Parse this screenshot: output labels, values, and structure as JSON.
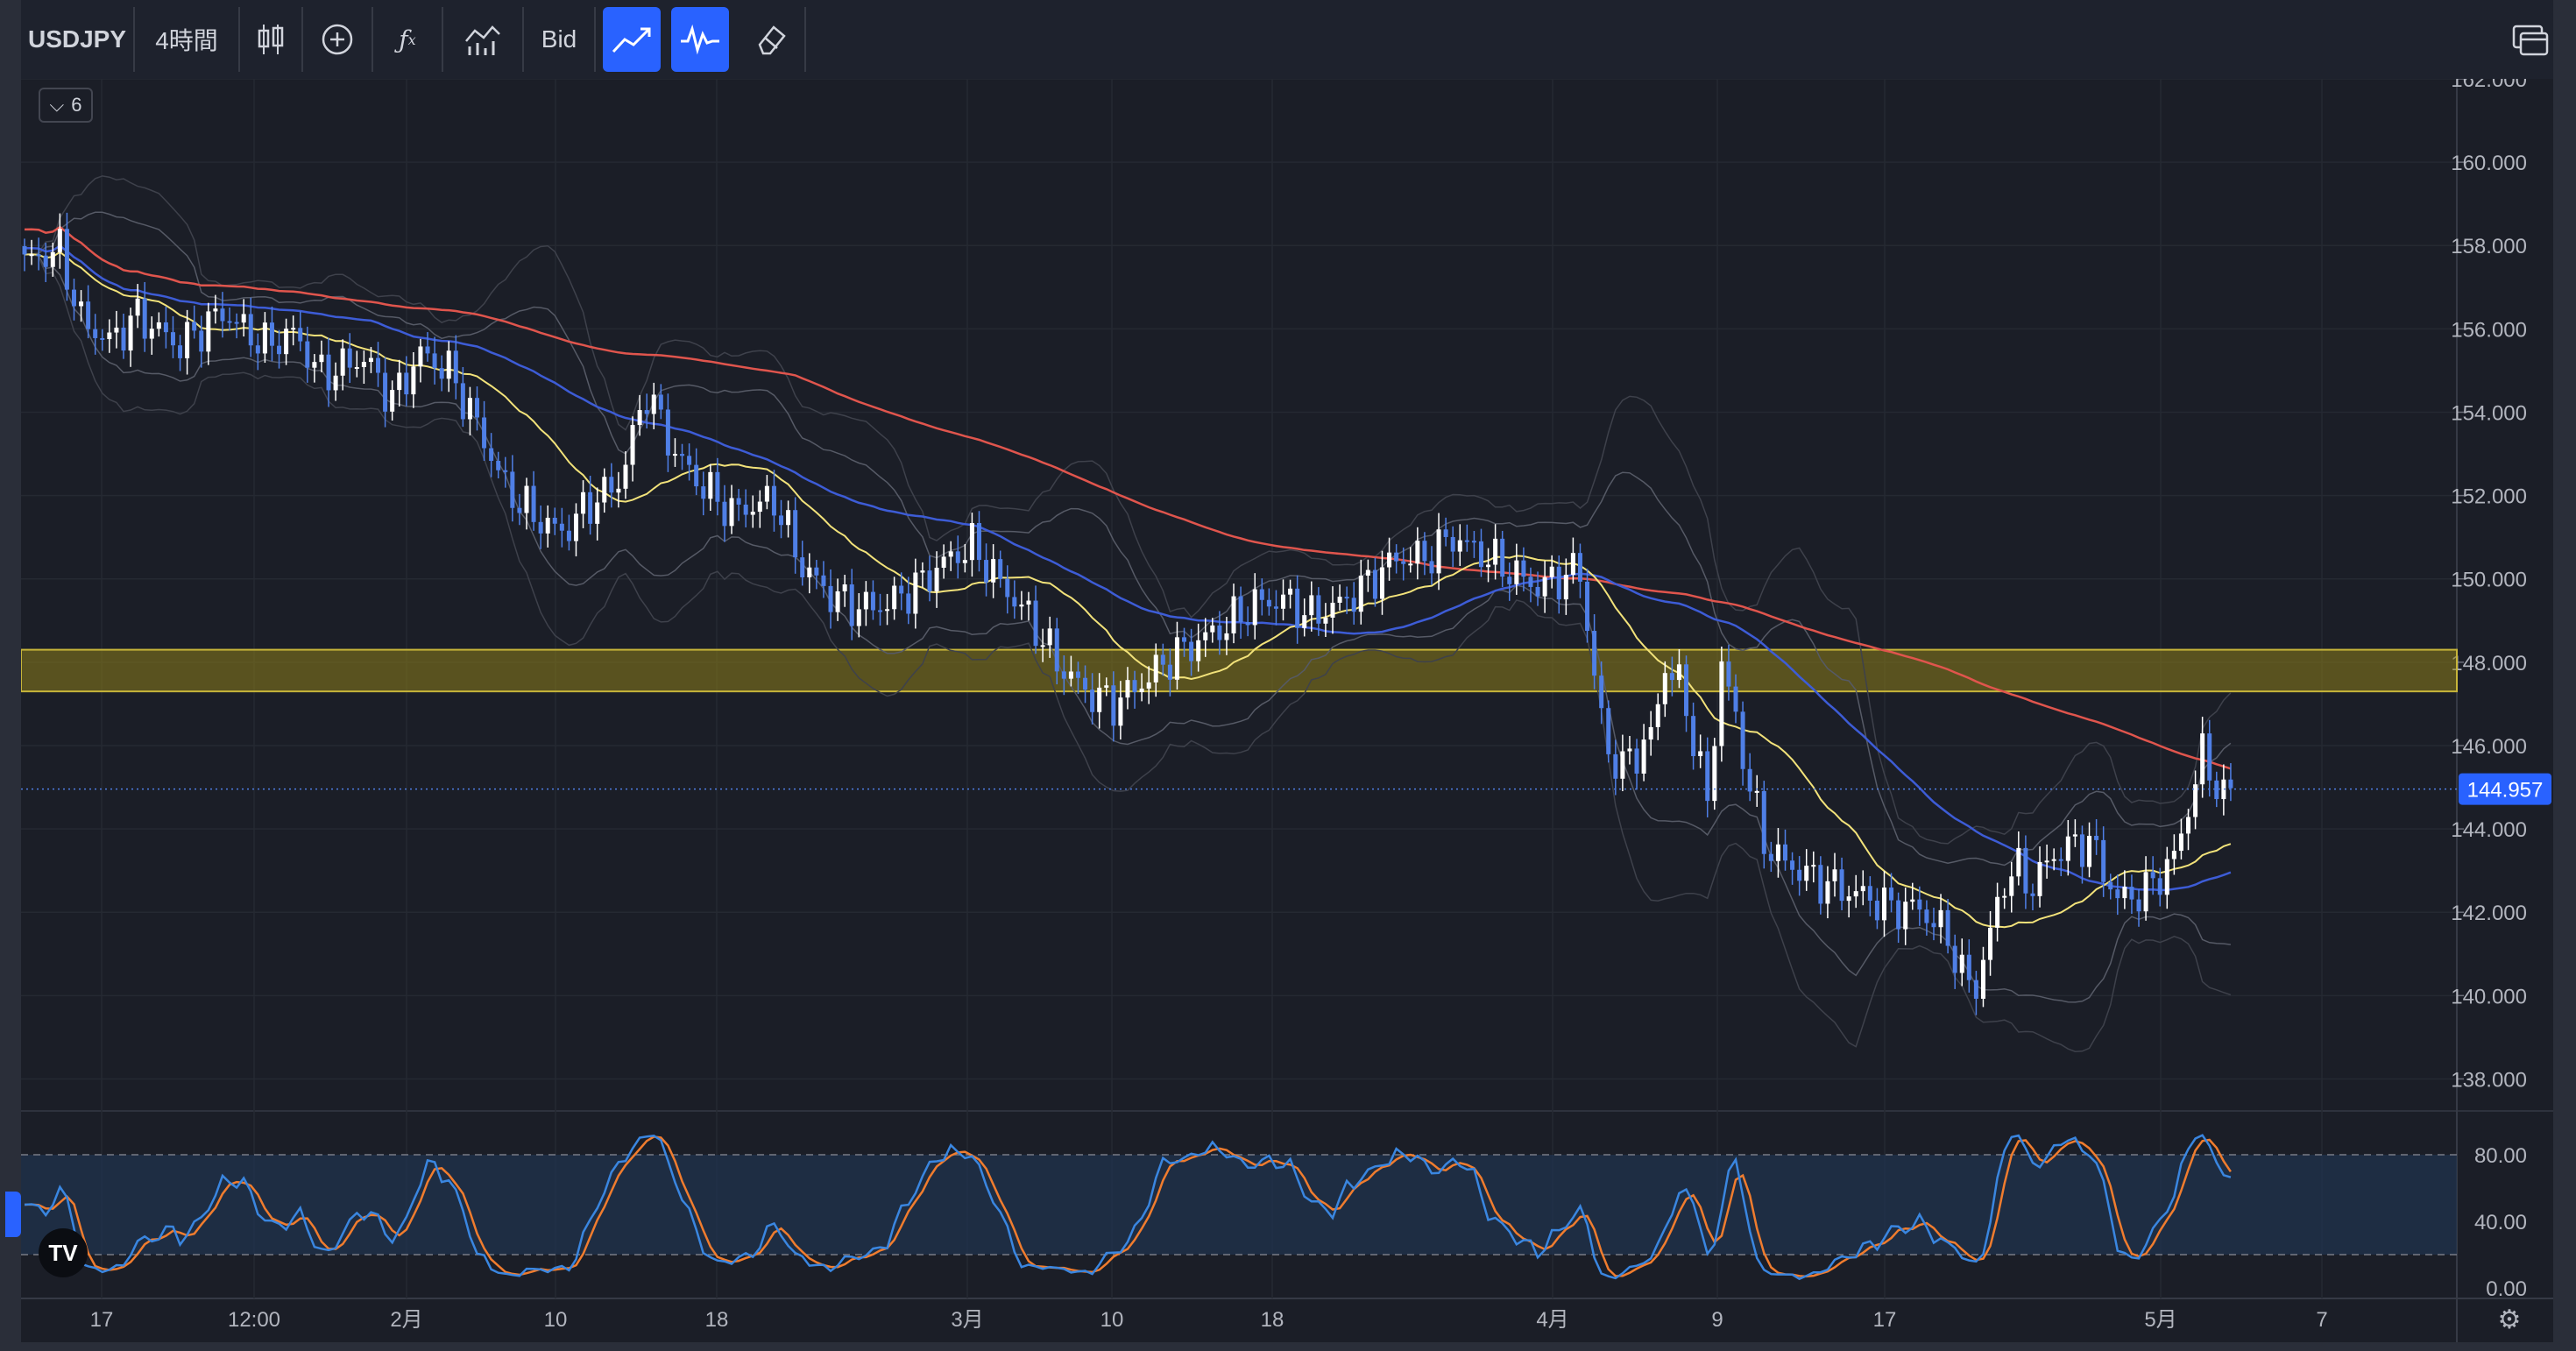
{
  "toolbar": {
    "symbol": "USDJPY",
    "interval": "4時間",
    "price_type": "Bid",
    "icons": [
      "candles-icon",
      "add-indicator-icon",
      "formula-icon",
      "indicators-icon",
      "trend-icon",
      "oscillator-icon",
      "eraser-icon",
      "layout-icon"
    ]
  },
  "legend_toggle": "6",
  "colors": {
    "background": "#1b1e27",
    "up_candle": "#ffffff",
    "down_candle": "#4f7fe6",
    "sma_short": "#f2e27a",
    "sma_mid": "#3d5cd6",
    "sma_long": "#e0554d",
    "stoch_k": "#3a86e0",
    "stoch_d": "#f07c2e",
    "zone": "#8c7d1a",
    "price_tag": "#2962ff"
  },
  "chart_data": [
    {
      "type": "candlestick",
      "symbol": "USDJPY",
      "y_ticks": [
        "162.000",
        "160.000",
        "158.000",
        "156.000",
        "154.000",
        "152.000",
        "150.000",
        "148.000",
        "146.000",
        "144.000",
        "142.000",
        "140.000",
        "138.000"
      ],
      "ylim": [
        137.4,
        162.0
      ],
      "x_ticks": [
        "17",
        "12:00",
        "2月",
        "10",
        "18",
        "3月",
        "10",
        "18",
        "4月",
        "9",
        "17",
        "5月",
        "7"
      ],
      "current_price": "144.957",
      "resistance_zone": [
        147.3,
        148.3
      ],
      "close_path": [
        [
          0,
          157.6
        ],
        [
          5,
          157.9
        ],
        [
          8,
          156.2
        ],
        [
          12,
          155.7
        ],
        [
          16,
          156.3
        ],
        [
          22,
          155.6
        ],
        [
          28,
          156.4
        ],
        [
          34,
          155.6
        ],
        [
          38,
          155.9
        ],
        [
          42,
          154.9
        ],
        [
          48,
          155.3
        ],
        [
          52,
          154.3
        ],
        [
          56,
          155.4
        ],
        [
          60,
          155.0
        ],
        [
          64,
          153.7
        ],
        [
          68,
          152.2
        ],
        [
          72,
          151.5
        ],
        [
          76,
          151.1
        ],
        [
          80,
          151.8
        ],
        [
          84,
          152.3
        ],
        [
          88,
          154.5
        ],
        [
          92,
          153.0
        ],
        [
          96,
          152.2
        ],
        [
          100,
          151.6
        ],
        [
          106,
          151.9
        ],
        [
          110,
          150.3
        ],
        [
          114,
          149.6
        ],
        [
          118,
          149.3
        ],
        [
          122,
          149.4
        ],
        [
          126,
          149.8
        ],
        [
          130,
          150.4
        ],
        [
          134,
          150.8
        ],
        [
          138,
          149.9
        ],
        [
          142,
          149.1
        ],
        [
          146,
          148.0
        ],
        [
          150,
          147.3
        ],
        [
          154,
          147.0
        ],
        [
          158,
          147.5
        ],
        [
          162,
          148.1
        ],
        [
          166,
          148.5
        ],
        [
          170,
          148.9
        ],
        [
          174,
          149.4
        ],
        [
          178,
          149.5
        ],
        [
          182,
          149.1
        ],
        [
          186,
          149.4
        ],
        [
          190,
          149.9
        ],
        [
          194,
          150.5
        ],
        [
          198,
          150.5
        ],
        [
          202,
          151.0
        ],
        [
          206,
          150.6
        ],
        [
          210,
          150.2
        ],
        [
          214,
          149.8
        ],
        [
          218,
          150.1
        ],
        [
          220,
          150.2
        ],
        [
          222,
          147.6
        ],
        [
          224,
          145.8
        ],
        [
          226,
          145.5
        ],
        [
          230,
          146.2
        ],
        [
          232,
          147.9
        ],
        [
          234,
          147.5
        ],
        [
          236,
          146.2
        ],
        [
          238,
          144.6
        ],
        [
          240,
          148.0
        ],
        [
          242,
          146.6
        ],
        [
          244,
          145.0
        ],
        [
          246,
          143.7
        ],
        [
          248,
          143.3
        ],
        [
          252,
          142.9
        ],
        [
          256,
          142.6
        ],
        [
          260,
          142.4
        ],
        [
          264,
          142.1
        ],
        [
          268,
          142.1
        ],
        [
          272,
          141.4
        ],
        [
          274,
          140.5
        ],
        [
          276,
          140.2
        ],
        [
          278,
          141.5
        ],
        [
          280,
          142.8
        ],
        [
          282,
          143.0
        ],
        [
          284,
          142.6
        ],
        [
          286,
          143.2
        ],
        [
          288,
          143.5
        ],
        [
          292,
          143.7
        ],
        [
          296,
          142.3
        ],
        [
          300,
          142.5
        ],
        [
          304,
          143.3
        ],
        [
          306,
          144.5
        ],
        [
          308,
          145.8
        ],
        [
          311,
          144.7
        ],
        [
          312,
          145.0
        ]
      ],
      "overlays": [
        {
          "name": "",
          "color": "#f2e27a",
          "type": "sma"
        },
        {
          "name": "",
          "color": "#3d5cd6",
          "type": "sma"
        },
        {
          "name": "",
          "color": "#e0554d",
          "type": "sma"
        },
        {
          "name": "",
          "color": "#6a6d78",
          "type": "bollinger"
        }
      ]
    },
    {
      "type": "line",
      "indicator": "stochastic",
      "y_ticks": [
        "80.00",
        "40.00",
        "0.00"
      ],
      "ylim": [
        0,
        100
      ],
      "band": [
        20,
        80
      ],
      "series": [
        {
          "name": "",
          "color": "#3a86e0"
        },
        {
          "name": "",
          "color": "#f07c2e"
        }
      ],
      "last_value": 65
    }
  ]
}
